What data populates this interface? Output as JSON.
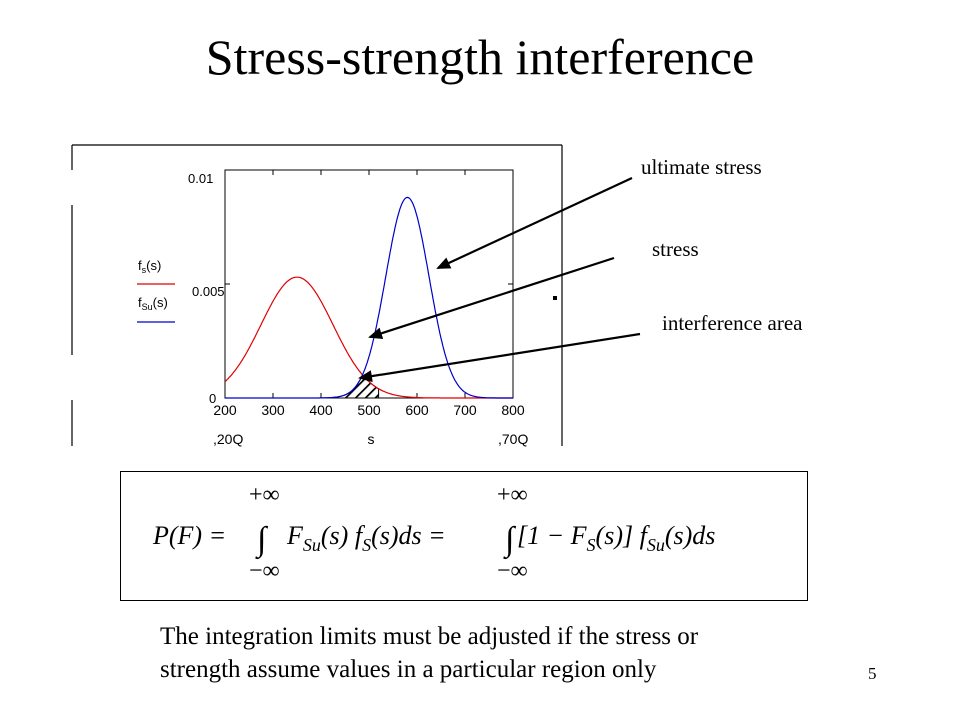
{
  "slide": {
    "title": "Stress-strength interference",
    "page_number": "5",
    "caption_line1": "The integration limits must be adjusted if the stress or",
    "caption_line2": "strength assume values in a particular region only"
  },
  "callouts": {
    "ultimate_stress": "ultimate stress",
    "stress": "stress",
    "interference_area": "interference area"
  },
  "formula": {
    "lhs": "P(F) =",
    "upper_limit": "+∞",
    "lower_limit": "−∞",
    "integral": "∫",
    "term1": "F",
    "term1_sub": "Su",
    "term1_rest": "(s) f",
    "term1_sub2": "S",
    "term1_end": "(s)ds =",
    "term2_start": "[1 − F",
    "term2_sub": "S",
    "term2_mid": "(s)] f",
    "term2_sub2": "Su",
    "term2_end": "(s)ds"
  },
  "chart_data": {
    "type": "line",
    "xlabel": "s",
    "ylabel_series1": "f s(s)",
    "ylabel_series2": "f Su(s)",
    "xlim": [
      200,
      800
    ],
    "ylim": [
      0,
      0.01
    ],
    "x_ticks": [
      "200",
      "300",
      "400",
      "500",
      "600",
      "700",
      "800"
    ],
    "y_ticks": [
      "0",
      "0.005",
      "0.01"
    ],
    "x_range_labels": [
      ",20Q",
      ",70Q"
    ],
    "series": [
      {
        "name": "f s(s)",
        "color": "#e00000",
        "mean": 350,
        "sd": 75,
        "peak": 0.0053
      },
      {
        "name": "f Su(s)",
        "color": "#0000cc",
        "mean": 580,
        "sd": 45,
        "peak": 0.0088
      }
    ],
    "shaded_region": "interference area",
    "colors": {
      "stress": "#e00000",
      "strength": "#0000cc"
    }
  }
}
